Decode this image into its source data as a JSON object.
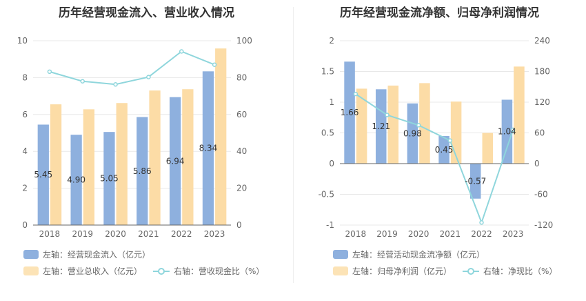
{
  "charts": [
    {
      "title": "历年经营现金流入、营业收入情况",
      "chart_data": {
        "type": "bar",
        "categories": [
          "2018",
          "2019",
          "2020",
          "2021",
          "2022",
          "2023"
        ],
        "left_axis": {
          "ylim": [
            0,
            10
          ],
          "ticks": [
            "0",
            "2",
            "4",
            "6",
            "8",
            "10"
          ]
        },
        "right_axis": {
          "ylim": [
            0,
            100
          ],
          "ticks": [
            "0",
            "20",
            "40",
            "60",
            "80",
            "100"
          ]
        },
        "series": [
          {
            "name": "左轴：经营现金流入（亿元）",
            "type": "bar",
            "axis": "left",
            "color": "#8eb0de",
            "values": [
              5.45,
              4.9,
              5.05,
              5.86,
              6.94,
              8.34
            ],
            "labels": [
              "5.45",
              "4.90",
              "5.05",
              "5.86",
              "6.94",
              "8.34"
            ]
          },
          {
            "name": "左轴：营业总收入（亿元）",
            "type": "bar",
            "axis": "left",
            "color": "#fcdca6",
            "values": [
              6.55,
              6.28,
              6.62,
              7.3,
              7.37,
              9.58
            ]
          },
          {
            "name": "右轴：营收现金比（%）",
            "type": "line",
            "axis": "right",
            "color": "#8fd6dc",
            "values": [
              83.2,
              78.0,
              76.3,
              80.3,
              94.2,
              87.0
            ]
          }
        ],
        "legend_position": "bottom"
      }
    },
    {
      "title": "历年经营现金流净额、归母净利润情况",
      "chart_data": {
        "type": "bar",
        "categories": [
          "2018",
          "2019",
          "2020",
          "2021",
          "2022",
          "2023"
        ],
        "left_axis": {
          "ylim": [
            -1,
            2
          ],
          "ticks": [
            "-1",
            "-0.5",
            "0",
            "0.5",
            "1",
            "1.5",
            "2"
          ]
        },
        "right_axis": {
          "ylim": [
            -120,
            240
          ],
          "ticks": [
            "-120",
            "-60",
            "0",
            "60",
            "120",
            "180",
            "240"
          ]
        },
        "series": [
          {
            "name": "左轴：经营活动现金流净额（亿元）",
            "type": "bar",
            "axis": "left",
            "color": "#8eb0de",
            "values": [
              1.66,
              1.21,
              0.98,
              0.45,
              -0.57,
              1.04
            ],
            "labels": [
              "1.66",
              "1.21",
              "0.98",
              "0.45",
              "-0.57",
              "1.04"
            ]
          },
          {
            "name": "左轴：归母净利润（亿元）",
            "type": "bar",
            "axis": "left",
            "color": "#fcdca6",
            "values": [
              1.22,
              1.27,
              1.31,
              1.01,
              0.5,
              1.58
            ]
          },
          {
            "name": "右轴：净现比（%）",
            "type": "line",
            "axis": "right",
            "color": "#8fd6dc",
            "values": [
              136,
              95,
              75,
              45,
              -115,
              66
            ]
          }
        ],
        "legend_position": "bottom"
      }
    }
  ]
}
